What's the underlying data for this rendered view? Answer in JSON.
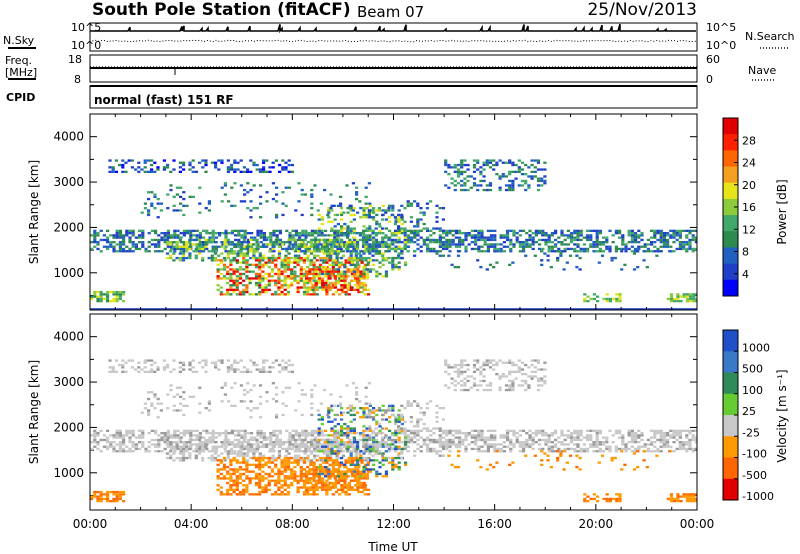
{
  "header": {
    "title": "South Pole Station (fitACF)",
    "beam": "Beam 07",
    "date": "25/Nov/2013"
  },
  "nsky_panel": {
    "left_label": "N.Sky",
    "right_label": "N.Search",
    "left_ticks": [
      "10^5",
      "10^0"
    ],
    "right_ticks": [
      "10^5",
      "10^0"
    ]
  },
  "freq_panel": {
    "left_label_1": "Freq.",
    "left_label_2": "[MHz]",
    "left_ticks": [
      "18",
      "8"
    ],
    "right_label": "Nave",
    "right_ticks": [
      "60",
      "0"
    ]
  },
  "cpid": {
    "label": "CPID",
    "text": "normal (fast) 151 RF"
  },
  "chart_data": [
    {
      "type": "heatmap",
      "name": "power",
      "ylabel": "Slant Range [km]",
      "yticks": [
        "4000",
        "3000",
        "2000",
        "1000"
      ],
      "ytick_values": [
        4000,
        3000,
        2000,
        1000
      ],
      "ylim": [
        180,
        4500
      ],
      "xlim_hours": [
        0,
        24
      ],
      "colorbar": {
        "label": "Power [dB]",
        "ticks": [
          "28",
          "24",
          "20",
          "16",
          "12",
          "8",
          "4"
        ],
        "range": [
          0,
          32
        ],
        "colors": [
          "#0000ff",
          "#1f3fc8",
          "#2060c0",
          "#2f8a4f",
          "#3fa86a",
          "#8ccb3b",
          "#e8e41a",
          "#f3a020",
          "#ff6600",
          "#ff2000",
          "#e00000"
        ]
      }
    },
    {
      "type": "heatmap",
      "name": "velocity",
      "ylabel": "Slant Range [km]",
      "yticks": [
        "4000",
        "3000",
        "2000",
        "1000"
      ],
      "ytick_values": [
        4000,
        3000,
        2000,
        1000
      ],
      "ylim": [
        180,
        4500
      ],
      "xlim_hours": [
        0,
        24
      ],
      "colorbar": {
        "label": "Velocity [m s⁻¹]",
        "ticks": [
          "1000",
          "500",
          "100",
          "25",
          "-25",
          "-100",
          "-500",
          "-1000"
        ],
        "colors": [
          "#2050c8",
          "#3a78c8",
          "#2e8b57",
          "#66cc33",
          "#c8c8c8",
          "#ff9900",
          "#ff6600",
          "#e00000"
        ]
      }
    }
  ],
  "x_axis": {
    "label": "Time UT",
    "ticks": [
      "00:00",
      "04:00",
      "08:00",
      "12:00",
      "16:00",
      "20:00",
      "00:00"
    ]
  }
}
